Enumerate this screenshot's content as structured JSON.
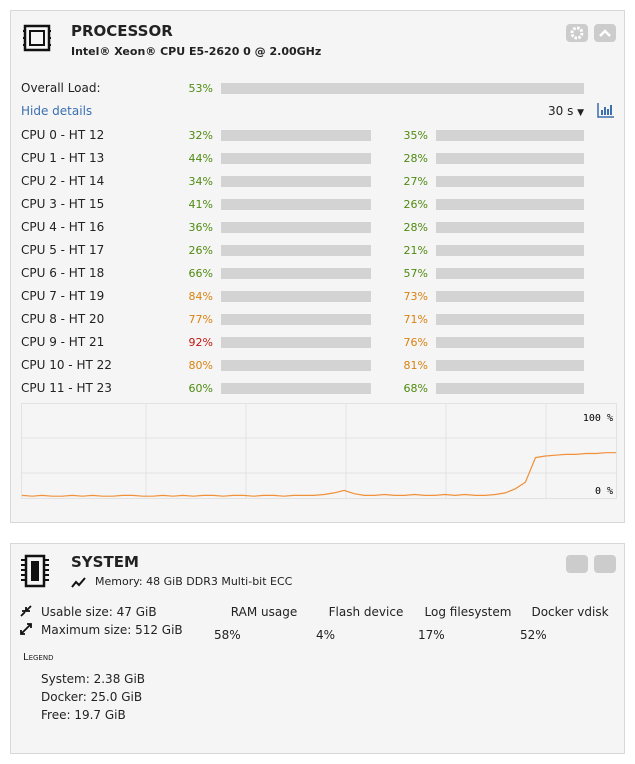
{
  "processor": {
    "title": "PROCESSOR",
    "model": "Intel® Xeon® CPU E5-2620 0 @ 2.00GHz",
    "status_colors": {
      "normal": {
        "bar": "#8e8e8e",
        "text": "#4f8a10"
      },
      "warning": {
        "bar": "#d9820f",
        "text": "#d9820f"
      },
      "critical": {
        "bar": "#c4150a",
        "text": "#c4150a"
      }
    },
    "overall": {
      "label": "Overall Load:",
      "value": 53,
      "value_label": "53%",
      "status": "normal"
    },
    "hide_details": "Hide details",
    "interval": "30 s",
    "cpus": [
      {
        "label": "CPU 0 - HT 12",
        "values": [
          32,
          35
        ],
        "value_labels": [
          "32%",
          "35%"
        ],
        "status": [
          "normal",
          "normal"
        ]
      },
      {
        "label": "CPU 1 - HT 13",
        "values": [
          44,
          28
        ],
        "value_labels": [
          "44%",
          "28%"
        ],
        "status": [
          "normal",
          "normal"
        ]
      },
      {
        "label": "CPU 2 - HT 14",
        "values": [
          34,
          27
        ],
        "value_labels": [
          "34%",
          "27%"
        ],
        "status": [
          "normal",
          "normal"
        ]
      },
      {
        "label": "CPU 3 - HT 15",
        "values": [
          41,
          26
        ],
        "value_labels": [
          "41%",
          "26%"
        ],
        "status": [
          "normal",
          "normal"
        ]
      },
      {
        "label": "CPU 4 - HT 16",
        "values": [
          36,
          28
        ],
        "value_labels": [
          "36%",
          "28%"
        ],
        "status": [
          "normal",
          "normal"
        ]
      },
      {
        "label": "CPU 5 - HT 17",
        "values": [
          26,
          21
        ],
        "value_labels": [
          "26%",
          "21%"
        ],
        "status": [
          "normal",
          "normal"
        ]
      },
      {
        "label": "CPU 6 - HT 18",
        "values": [
          66,
          57
        ],
        "value_labels": [
          "66%",
          "57%"
        ],
        "status": [
          "normal",
          "normal"
        ]
      },
      {
        "label": "CPU 7 - HT 19",
        "values": [
          84,
          73
        ],
        "value_labels": [
          "84%",
          "73%"
        ],
        "status": [
          "warning",
          "warning"
        ]
      },
      {
        "label": "CPU 8 - HT 20",
        "values": [
          77,
          71
        ],
        "value_labels": [
          "77%",
          "71%"
        ],
        "status": [
          "warning",
          "warning"
        ]
      },
      {
        "label": "CPU 9 - HT 21",
        "values": [
          92,
          76
        ],
        "value_labels": [
          "92%",
          "76%"
        ],
        "status": [
          "critical",
          "warning"
        ]
      },
      {
        "label": "CPU 10 - HT 22",
        "values": [
          80,
          81
        ],
        "value_labels": [
          "80%",
          "81%"
        ],
        "status": [
          "warning",
          "warning"
        ]
      },
      {
        "label": "CPU 11 - HT 23",
        "values": [
          60,
          68
        ],
        "value_labels": [
          "60%",
          "68%"
        ],
        "status": [
          "normal",
          "normal"
        ]
      }
    ],
    "graph": {
      "color": "#f0913a",
      "ylim": [
        0,
        100
      ],
      "yticks": [
        {
          "value": 100,
          "label": "100 %"
        },
        {
          "value": 0,
          "label": "0 %"
        }
      ],
      "values": [
        2,
        1,
        2,
        1,
        1,
        2,
        1,
        2,
        1,
        1,
        2,
        2,
        1,
        1,
        2,
        1,
        2,
        1,
        2,
        2,
        1,
        2,
        2,
        1,
        2,
        2,
        1,
        2,
        2,
        2,
        3,
        5,
        8,
        4,
        2,
        2,
        3,
        2,
        2,
        3,
        2,
        2,
        3,
        2,
        3,
        2,
        2,
        3,
        5,
        10,
        18,
        48,
        50,
        51,
        52,
        52,
        53,
        53,
        54,
        54
      ]
    }
  },
  "system": {
    "title": "SYSTEM",
    "memory": "Memory: 48 GiB DDR3 Multi-bit ECC",
    "usable": "Usable size: 47 GiB",
    "maximum": "Maximum size: 512 GiB",
    "legend_title": "Legend",
    "legend": [
      {
        "label": "System: 2.38 GiB",
        "color": "#a3a3a3"
      },
      {
        "label": "Docker: 25.0 GiB",
        "color": "#d9820f"
      },
      {
        "label": "Free: 19.7 GiB",
        "color": "#dcdcdc"
      }
    ],
    "gauges": [
      {
        "label": "RAM usage",
        "value": 58,
        "value_label": "58%",
        "color": "#d9820f"
      },
      {
        "label": "Flash device",
        "value": 4,
        "value_label": "4%",
        "color": "#a3a3a3"
      },
      {
        "label": "Log filesystem",
        "value": 17,
        "value_label": "17%",
        "color": "#a3a3a3"
      },
      {
        "label": "Docker vdisk",
        "value": 52,
        "value_label": "52%",
        "color": "#a3a3a3"
      }
    ]
  }
}
